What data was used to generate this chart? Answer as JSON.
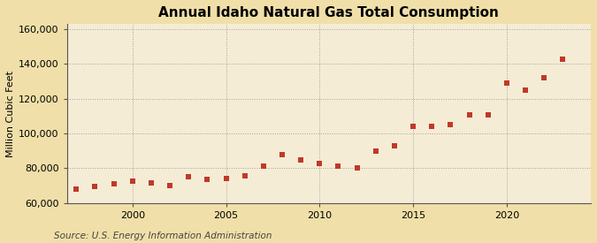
{
  "title": "Annual Idaho Natural Gas Total Consumption",
  "ylabel": "Million Cubic Feet",
  "source": "Source: U.S. Energy Information Administration",
  "outer_bg": "#f0dfa8",
  "inner_bg": "#f5ecd5",
  "marker_color": "#c0392b",
  "xlim": [
    1996.5,
    2024.5
  ],
  "ylim": [
    60000,
    163000
  ],
  "yticks": [
    60000,
    80000,
    100000,
    120000,
    140000,
    160000
  ],
  "ytick_labels": [
    "60,000",
    "80,000",
    "100,000",
    "120,000",
    "140,000",
    "160,000"
  ],
  "xticks": [
    2000,
    2005,
    2010,
    2015,
    2020
  ],
  "years": [
    1997,
    1998,
    1999,
    2000,
    2001,
    2002,
    2003,
    2004,
    2005,
    2006,
    2007,
    2008,
    2009,
    2010,
    2011,
    2012,
    2013,
    2014,
    2015,
    2016,
    2017,
    2018,
    2019,
    2020,
    2021,
    2022,
    2023
  ],
  "values": [
    68000,
    69500,
    71000,
    72500,
    71500,
    70000,
    75000,
    73500,
    74000,
    75500,
    81000,
    88000,
    85000,
    83000,
    81000,
    80000,
    90000,
    93000,
    104000,
    104000,
    105000,
    111000,
    111000,
    129000,
    125000,
    132000,
    143000
  ],
  "title_fontsize": 11,
  "label_fontsize": 8,
  "tick_fontsize": 8,
  "source_fontsize": 7.5
}
